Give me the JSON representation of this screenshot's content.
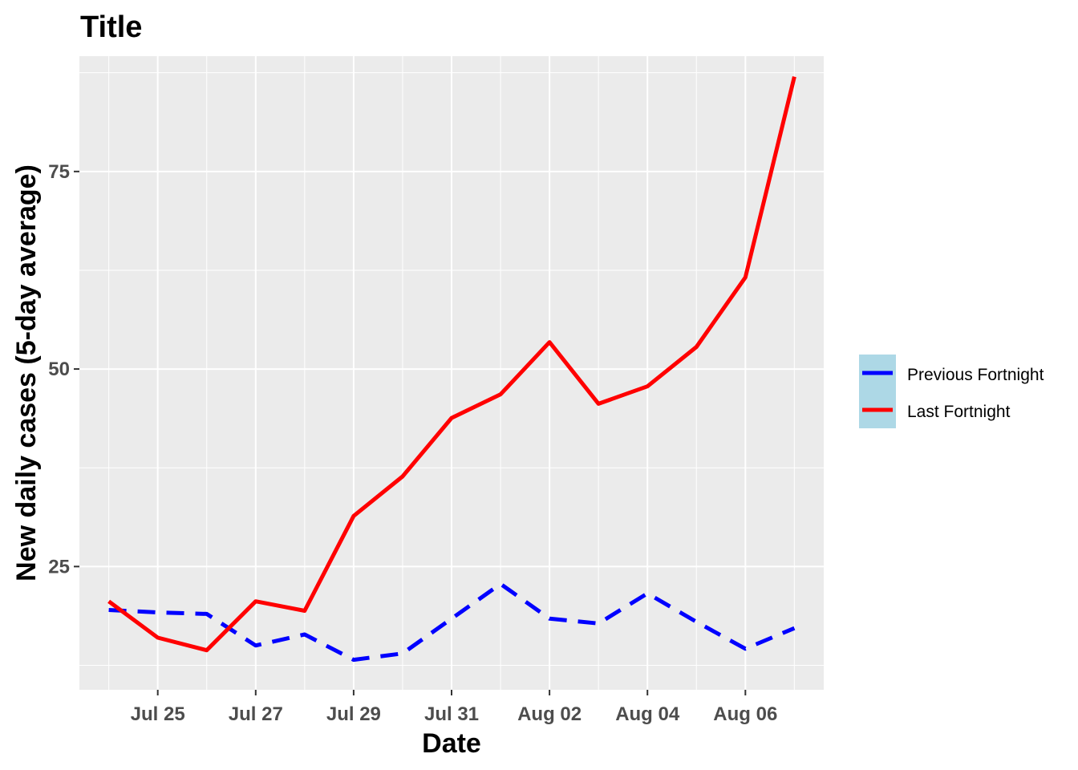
{
  "chart_data": {
    "type": "line",
    "title": "Title",
    "xlabel": "Date",
    "ylabel": "New daily cases (5-day average)",
    "x": [
      "Jul 24",
      "Jul 25",
      "Jul 26",
      "Jul 27",
      "Jul 28",
      "Jul 29",
      "Jul 30",
      "Jul 31",
      "Aug 01",
      "Aug 02",
      "Aug 03",
      "Aug 04",
      "Aug 05",
      "Aug 06",
      "Aug 07"
    ],
    "x_ticks": [
      "Jul 25",
      "Jul 27",
      "Jul 29",
      "Jul 31",
      "Aug 02",
      "Aug 04",
      "Aug 06"
    ],
    "y_ticks": [
      25,
      50,
      75
    ],
    "ylim": [
      9.4,
      89.6
    ],
    "grid": true,
    "legend_position": "right",
    "series": [
      {
        "name": "Previous Fortnight",
        "color": "#0000ff",
        "dash": "dashed",
        "values": [
          19.5,
          19.2,
          19.0,
          15.0,
          16.4,
          13.2,
          14.0,
          18.4,
          22.8,
          18.4,
          17.8,
          21.6,
          18.0,
          14.6,
          17.2
        ]
      },
      {
        "name": "Last Fortnight",
        "color": "#ff0000",
        "dash": "solid",
        "values": [
          20.6,
          16.0,
          14.4,
          20.6,
          19.4,
          31.4,
          36.4,
          43.8,
          46.8,
          53.4,
          45.6,
          47.8,
          52.8,
          61.6,
          87.0
        ]
      }
    ],
    "panel_background": "#ebebeb",
    "legend_key_background": "#add8e6"
  }
}
